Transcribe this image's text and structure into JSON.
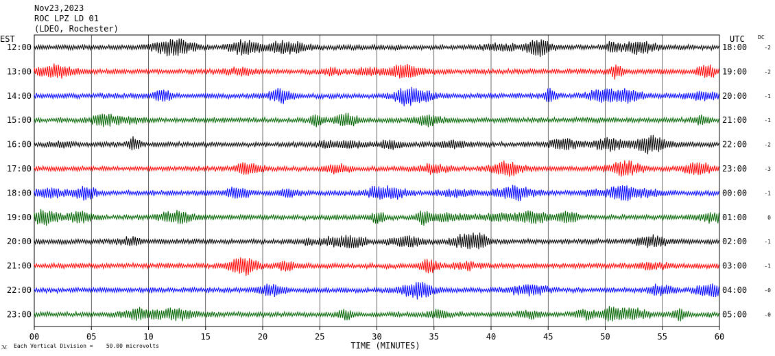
{
  "header": {
    "date": "Nov23,2023",
    "station": "ROC LPZ LD 01",
    "network": "(LDEO, Rochester)"
  },
  "chart_data": {
    "type": "line",
    "title": "Nov23,2023",
    "left_axis_title": "EST",
    "right_axis_title": "UTC",
    "dc_title": "DC",
    "xlabel": "TIME (MINUTES)",
    "xlim": [
      0,
      60
    ],
    "x_tick_labels": [
      "00",
      "05",
      "10",
      "15",
      "20",
      "25",
      "30",
      "35",
      "40",
      "45",
      "50",
      "55",
      "60"
    ],
    "grid": "vertical lines every 5 minutes",
    "scale_note": "Each Vertical Division =    50.00 microvolts",
    "trace_colors": [
      "#000000",
      "#ff0000",
      "#0000ff",
      "#006400"
    ],
    "traces": [
      {
        "est": "12:00",
        "utc": "18:00",
        "dc": "-2"
      },
      {
        "est": "13:00",
        "utc": "19:00",
        "dc": "-2"
      },
      {
        "est": "14:00",
        "utc": "20:00",
        "dc": "-1"
      },
      {
        "est": "15:00",
        "utc": "21:00",
        "dc": "-1"
      },
      {
        "est": "16:00",
        "utc": "22:00",
        "dc": "-2"
      },
      {
        "est": "17:00",
        "utc": "23:00",
        "dc": "-3"
      },
      {
        "est": "18:00",
        "utc": "00:00",
        "dc": "-1"
      },
      {
        "est": "19:00",
        "utc": "01:00",
        "dc": "0"
      },
      {
        "est": "20:00",
        "utc": "02:00",
        "dc": "-1"
      },
      {
        "est": "21:00",
        "utc": "03:00",
        "dc": "-1"
      },
      {
        "est": "22:00",
        "utc": "04:00",
        "dc": "-0"
      },
      {
        "est": "23:00",
        "utc": "05:00",
        "dc": "-0"
      }
    ]
  }
}
